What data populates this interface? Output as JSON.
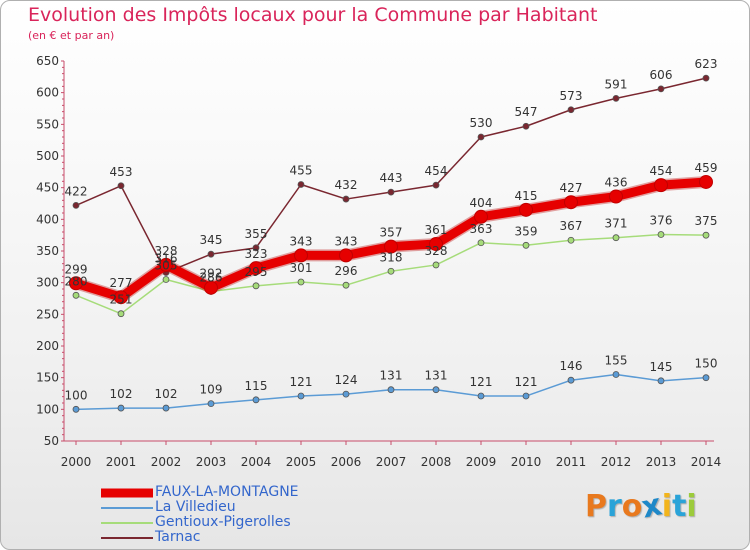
{
  "header": {
    "title": "Evolution des Impôts locaux pour la Commune par Habitant",
    "subtitle": "(en € et par an)"
  },
  "chart_data": {
    "type": "line",
    "title": "Evolution des Impôts locaux pour la Commune par Habitant",
    "subtitle": "(en € et par an)",
    "xlabel": "",
    "ylabel": "",
    "x": [
      2000,
      2001,
      2002,
      2003,
      2004,
      2005,
      2006,
      2007,
      2008,
      2009,
      2010,
      2011,
      2012,
      2013,
      2014
    ],
    "ylim": [
      50,
      650
    ],
    "yticks": [
      50,
      100,
      150,
      200,
      250,
      300,
      350,
      400,
      450,
      500,
      550,
      600,
      650
    ],
    "grid": false,
    "legend_position": "bottom-left",
    "series": [
      {
        "name": "Tarnac",
        "color": "#7a2730",
        "values": [
          422,
          453,
          316,
          345,
          355,
          455,
          432,
          443,
          454,
          530,
          547,
          573,
          591,
          606,
          623
        ]
      },
      {
        "name": "Gentioux-Pigerolles",
        "color": "#a6dc7a",
        "values": [
          280,
          251,
          305,
          286,
          295,
          301,
          296,
          318,
          328,
          363,
          359,
          367,
          371,
          376,
          375
        ]
      },
      {
        "name": "La Villedieu",
        "color": "#5b9bd5",
        "values": [
          100,
          102,
          102,
          109,
          115,
          121,
          124,
          131,
          131,
          121,
          121,
          146,
          155,
          145,
          150
        ]
      },
      {
        "name": "FAUX-LA-MONTAGNE",
        "color": "#e60000",
        "values": [
          299,
          277,
          328,
          292,
          323,
          343,
          343,
          357,
          361,
          404,
          415,
          427,
          436,
          454,
          459
        ]
      }
    ],
    "legend_order": [
      "FAUX-LA-MONTAGNE",
      "La Villedieu",
      "Gentioux-Pigerolles",
      "Tarnac"
    ]
  },
  "logo": {
    "text": "Proxiti",
    "colors": [
      "#e8791e",
      "#2aa3d8",
      "#e8791e",
      "#1e88c8",
      "#f2b41c",
      "#2aa3d8",
      "#9ccb3b"
    ]
  }
}
